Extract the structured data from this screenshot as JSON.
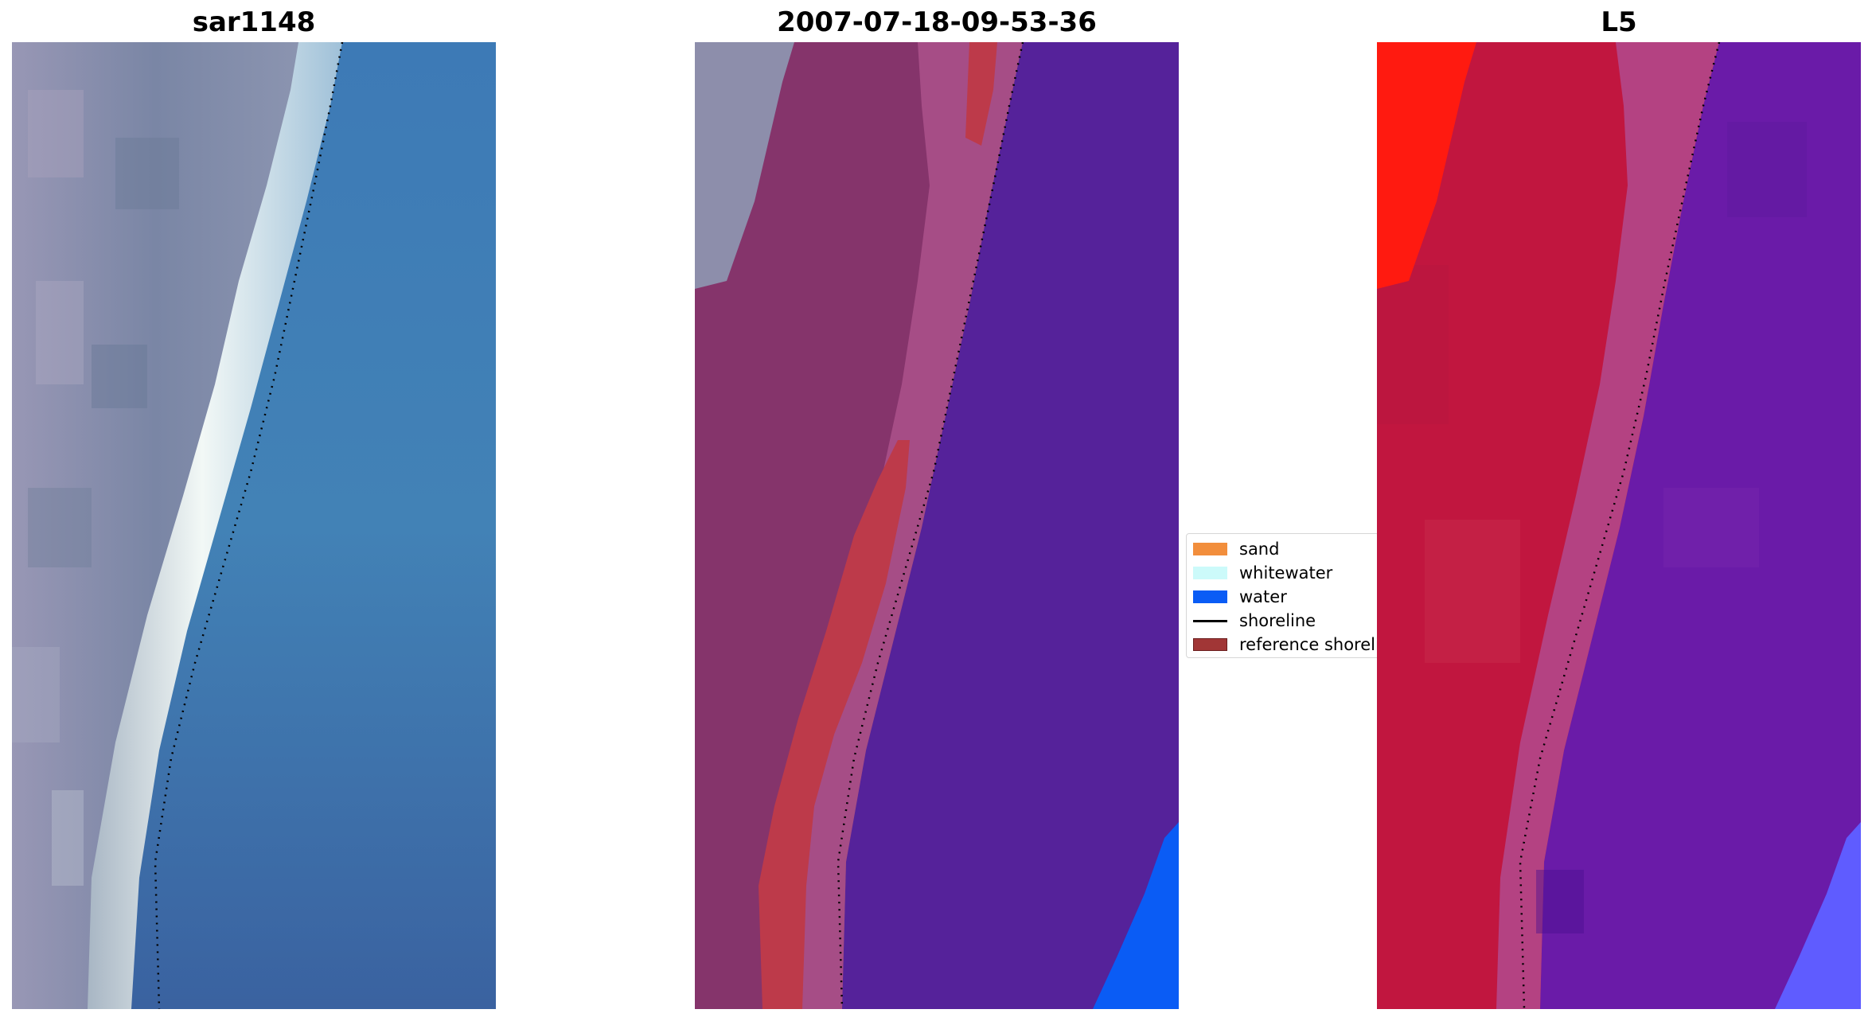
{
  "panels": [
    {
      "title": "sar1148"
    },
    {
      "title": "2007-07-18-09-53-36"
    },
    {
      "title": "L5"
    }
  ],
  "legend": {
    "items": [
      {
        "label": "sand",
        "color": "#f28e3c",
        "kind": "patch"
      },
      {
        "label": "whitewater",
        "color": "#ccfafa",
        "kind": "patch"
      },
      {
        "label": "water",
        "color": "#0a5cf5",
        "kind": "patch"
      },
      {
        "label": "shoreline",
        "color": "#000000",
        "kind": "line"
      },
      {
        "label": "reference shoreline",
        "color": "#a13636",
        "kind": "patch"
      }
    ]
  },
  "colors": {
    "rgb_land": "#7d86a8",
    "rgb_whitewater": "#e6f0ee",
    "rgb_water": "#3c7cb4",
    "class_land": "#85346b",
    "class_transition": "#a64d86",
    "class_reference": "#bd3a4a",
    "class_water": "#55229a",
    "class_water_bright": "#0a5cf5",
    "l5_land": "#c1163f",
    "l5_bright": "#ff1a10",
    "l5_transition": "#b14a8e",
    "l5_water": "#6a1ba8",
    "l5_water_bright": "#5f5cff"
  }
}
